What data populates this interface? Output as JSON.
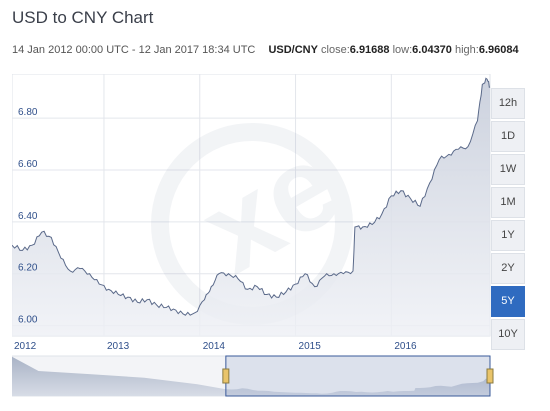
{
  "header": {
    "title": "USD to CNY Chart",
    "date_range": "14 Jan 2012 00:00 UTC - 12 Jan 2017 18:34 UTC",
    "pair": "USD/CNY",
    "close_label": "close:",
    "close_value": "6.91688",
    "low_label": "low:",
    "low_value": "6.04370",
    "high_label": "high:",
    "high_value": "6.96084"
  },
  "range_buttons": [
    {
      "label": "12h",
      "active": false
    },
    {
      "label": "1D",
      "active": false
    },
    {
      "label": "1W",
      "active": false
    },
    {
      "label": "1M",
      "active": false
    },
    {
      "label": "1Y",
      "active": false
    },
    {
      "label": "2Y",
      "active": false
    },
    {
      "label": "5Y",
      "active": true
    },
    {
      "label": "10Y",
      "active": false
    }
  ],
  "colors": {
    "line": "#5b6a8a",
    "fill_top": "#c9cfdc",
    "grid": "#e3e6ec",
    "accent": "#2f6bc0",
    "nav_fill": "#a9b3c6",
    "nav_window": "#3a5a9a"
  },
  "chart_data": {
    "type": "area",
    "title": "USD to CNY Chart",
    "xlabel": "",
    "ylabel": "",
    "xlim": [
      2012.04,
      2017.03
    ],
    "ylim": [
      5.96,
      6.97
    ],
    "y_ticks": [
      6.0,
      6.2,
      6.4,
      6.6,
      6.8
    ],
    "y_tick_labels": [
      "6.00",
      "6.20",
      "6.40",
      "6.60",
      "6.80"
    ],
    "x_ticks": [
      2012,
      2013,
      2014,
      2015,
      2016
    ],
    "x_tick_labels": [
      "2012",
      "2013",
      "2014",
      "2015",
      "2016"
    ],
    "grid": true,
    "legend": "none",
    "series": [
      {
        "x": [
          2012.04,
          2012.15,
          2012.25,
          2012.35,
          2012.45,
          2012.55,
          2012.65,
          2012.75,
          2012.85,
          2012.95,
          2013.05,
          2013.15,
          2013.25,
          2013.35,
          2013.45,
          2013.55,
          2013.65,
          2013.75,
          2013.85,
          2013.95,
          2014.05,
          2014.12,
          2014.2,
          2014.3,
          2014.4,
          2014.5,
          2014.6,
          2014.7,
          2014.8,
          2014.9,
          2015.0,
          2015.1,
          2015.2,
          2015.3,
          2015.4,
          2015.5,
          2015.6,
          2015.62,
          2015.7,
          2015.8,
          2015.9,
          2016.0,
          2016.1,
          2016.2,
          2016.3,
          2016.4,
          2016.5,
          2016.6,
          2016.7,
          2016.8,
          2016.9,
          2016.95,
          2017.0,
          2017.03
        ],
        "y": [
          6.31,
          6.29,
          6.31,
          6.36,
          6.34,
          6.26,
          6.21,
          6.22,
          6.2,
          6.16,
          6.14,
          6.12,
          6.11,
          6.09,
          6.1,
          6.08,
          6.07,
          6.06,
          6.04,
          6.05,
          6.1,
          6.15,
          6.2,
          6.2,
          6.18,
          6.14,
          6.15,
          6.12,
          6.11,
          6.13,
          6.16,
          6.2,
          6.15,
          6.19,
          6.2,
          6.2,
          6.21,
          6.38,
          6.38,
          6.39,
          6.43,
          6.5,
          6.52,
          6.49,
          6.46,
          6.55,
          6.64,
          6.66,
          6.68,
          6.69,
          6.79,
          6.93,
          6.95,
          6.92
        ]
      }
    ],
    "navigator": {
      "x_from": 2008.0,
      "x_to": 2017.03,
      "window_start": 2012.04,
      "window_end": 2017.03
    }
  }
}
